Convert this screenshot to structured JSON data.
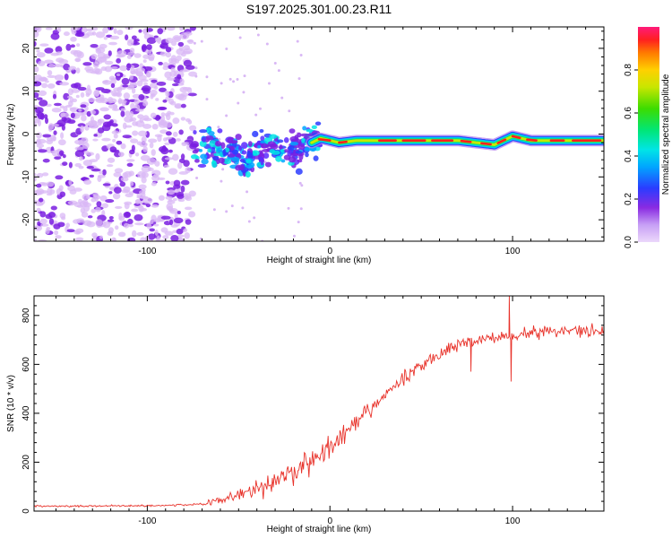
{
  "title": "S197.2025.301.00.23.R11",
  "colors": {
    "background": "#ffffff",
    "axis": "#000000",
    "snr_line": "#e8322a",
    "scatter_noise": "#7a1fe0",
    "scatter_light": "#d9b8f5"
  },
  "chart_data": [
    {
      "type": "heatmap",
      "title": "S197.2025.301.00.23.R11",
      "xlabel": "Height of straight line (km)",
      "ylabel": "Frequency (Hz)",
      "xlim": [
        -162,
        150
      ],
      "ylim": [
        -25,
        25
      ],
      "x_ticks": [
        -100,
        0,
        100
      ],
      "y_ticks": [
        20,
        10,
        0,
        -10,
        -20
      ],
      "noise_region_x": [
        -162,
        -75
      ],
      "transition_region_x": [
        -75,
        -5
      ],
      "signal_track": {
        "x": [
          -72,
          -60,
          -45,
          -30,
          -20,
          -10,
          -5,
          5,
          15,
          30,
          50,
          70,
          80,
          90,
          95,
          100,
          110,
          120,
          135,
          148
        ],
        "freq": [
          -3,
          -4,
          -5,
          -3,
          -4,
          -2,
          -1,
          -2,
          -1.5,
          -1.5,
          -1.5,
          -1.5,
          -2,
          -2.5,
          -1.5,
          -0.5,
          -1.5,
          -1.5,
          -1.5,
          -1.5
        ]
      },
      "colorbar": {
        "label": "Normalized spectral amplitude",
        "range": [
          0.0,
          1.0
        ],
        "ticks": [
          "0.0",
          "0.2",
          "0.4",
          "0.6",
          "0.8"
        ],
        "tick_values": [
          0.0,
          0.2,
          0.4,
          0.6,
          0.8
        ]
      }
    },
    {
      "type": "line",
      "xlabel": "Height of straight line (km)",
      "ylabel": "SNR (10 * v/v)",
      "xlim": [
        -162,
        150
      ],
      "ylim": [
        0,
        880
      ],
      "x_ticks": [
        -100,
        0,
        100
      ],
      "y_ticks": [
        0,
        200,
        400,
        600,
        800
      ],
      "series": [
        {
          "name": "SNR",
          "x": [
            -162,
            -140,
            -120,
            -100,
            -80,
            -70,
            -60,
            -50,
            -40,
            -30,
            -20,
            -10,
            0,
            10,
            20,
            30,
            40,
            50,
            60,
            70,
            80,
            90,
            100,
            110,
            120,
            130,
            140,
            150
          ],
          "y": [
            20,
            20,
            22,
            22,
            25,
            30,
            45,
            70,
            90,
            120,
            160,
            210,
            260,
            320,
            400,
            470,
            540,
            600,
            640,
            680,
            700,
            710,
            720,
            730,
            735,
            740,
            740,
            740
          ],
          "notable_points": [
            {
              "x": 77,
              "y": 570
            },
            {
              "x": 98,
              "y": 880
            },
            {
              "x": 99,
              "y": 530
            }
          ]
        }
      ]
    }
  ]
}
